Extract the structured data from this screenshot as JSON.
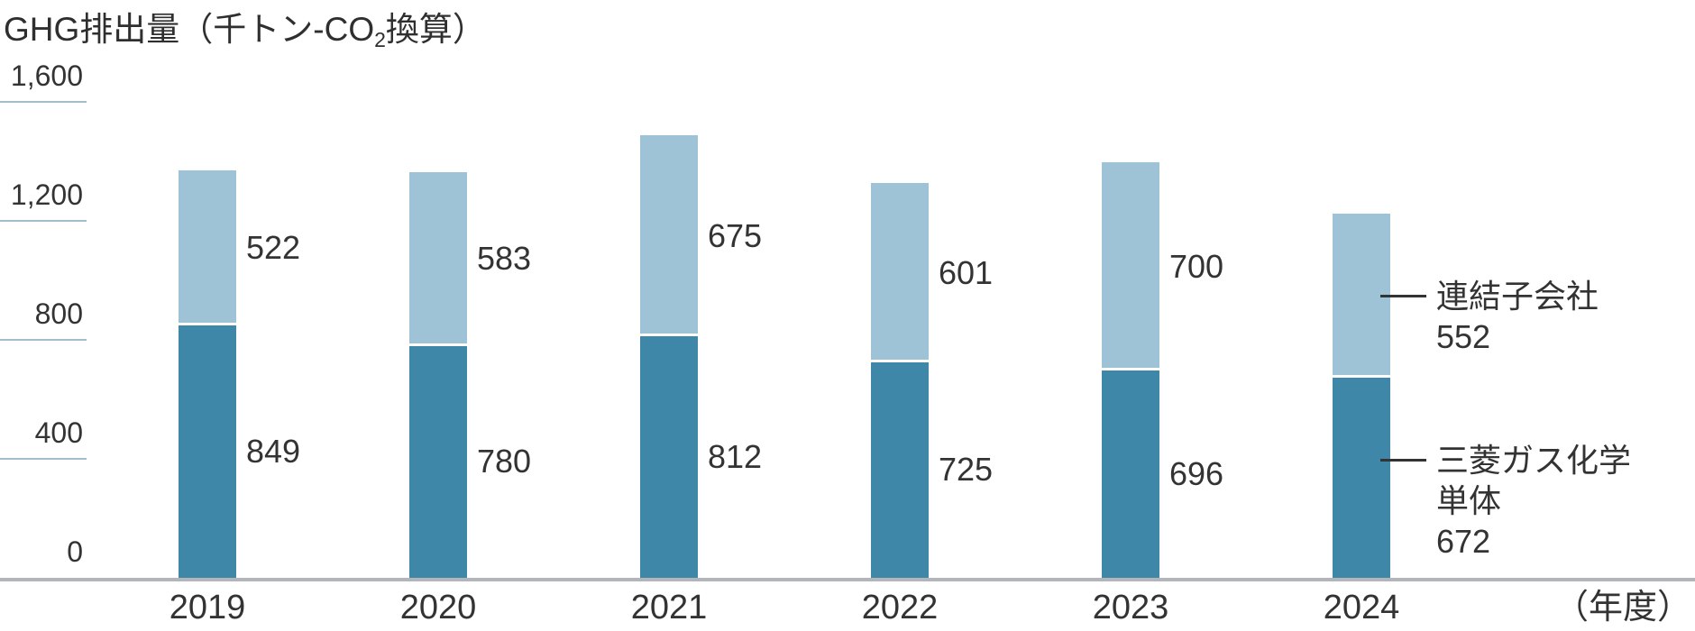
{
  "title": {
    "prefix": "GHG排出量（千トン-CO",
    "sub": "2",
    "suffix": "換算）"
  },
  "chart_data": {
    "type": "bar",
    "stacked": true,
    "title": "GHG排出量（千トン-CO2換算）",
    "categories": [
      "2019",
      "2020",
      "2021",
      "2022",
      "2023",
      "2024"
    ],
    "series": [
      {
        "key": "mgc-parent",
        "name": "三菱ガス化学単体",
        "color": "#3e87a8",
        "values": [
          849,
          780,
          812,
          725,
          696,
          672
        ]
      },
      {
        "key": "subsidiaries",
        "name": "連結子会社",
        "color": "#9fc3d6",
        "values": [
          522,
          583,
          675,
          601,
          700,
          552
        ]
      }
    ],
    "ylim": [
      0,
      1600
    ],
    "yticks": [
      0,
      400,
      800,
      1200,
      1600
    ],
    "ytick_labels": [
      "0",
      "400",
      "800",
      "1,200",
      "1,600"
    ],
    "xlabel": "（年度）",
    "grid": false,
    "legend_position": "right-of-last-bar",
    "notes": "2024 values are labeled via the legend leader lines instead of inline labels"
  },
  "legend": {
    "entries": [
      {
        "series": "subsidiaries",
        "label_lines": [
          "連結子会社"
        ],
        "value": "552"
      },
      {
        "series": "mgc-parent",
        "label_lines": [
          "三菱ガス化学",
          "単体"
        ],
        "value": "672"
      }
    ]
  }
}
